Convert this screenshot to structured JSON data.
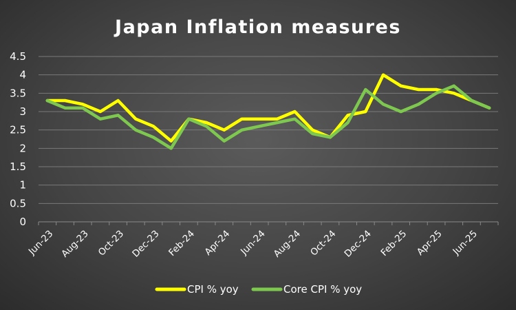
{
  "chart_data": {
    "type": "line",
    "title": "Japan Inflation measures",
    "xlabel": "",
    "ylabel": "",
    "x": [
      "Jun-23",
      "Jul-23",
      "Aug-23",
      "Sep-23",
      "Oct-23",
      "Nov-23",
      "Dec-23",
      "Jan-24",
      "Feb-24",
      "Mar-24",
      "Apr-24",
      "May-24",
      "Jun-24",
      "Jul-24",
      "Aug-24",
      "Sep-24",
      "Oct-24",
      "Nov-24",
      "Dec-24",
      "Jan-25",
      "Feb-25",
      "Mar-25",
      "Apr-25",
      "May-25",
      "Jun-25",
      "Jul-25"
    ],
    "xtick_labels": [
      "Jun-23",
      "Aug-23",
      "Oct-23",
      "Dec-23",
      "Feb-24",
      "Apr-24",
      "Jun-24",
      "Aug-24",
      "Oct-24",
      "Dec-24",
      "Feb-25",
      "Apr-25",
      "Jun-25"
    ],
    "yticks": [
      "0",
      "0.5",
      "1",
      "1.5",
      "2",
      "2.5",
      "3",
      "3.5",
      "4",
      "4.5"
    ],
    "ylim": [
      0,
      4.5
    ],
    "grid": true,
    "legend_position": "bottom",
    "series": [
      {
        "name": "CPI % yoy",
        "color": "#ffff00",
        "values": [
          3.3,
          3.3,
          3.2,
          3.0,
          3.3,
          2.8,
          2.6,
          2.2,
          2.8,
          2.7,
          2.5,
          2.8,
          2.8,
          2.8,
          3.0,
          2.5,
          2.3,
          2.9,
          3.0,
          4.0,
          3.7,
          3.6,
          3.6,
          3.5,
          3.3,
          3.1
        ]
      },
      {
        "name": "Core CPI % yoy",
        "color": "#7ec850",
        "values": [
          3.3,
          3.1,
          3.1,
          2.8,
          2.9,
          2.5,
          2.3,
          2.0,
          2.8,
          2.6,
          2.2,
          2.5,
          2.6,
          2.7,
          2.8,
          2.4,
          2.3,
          2.7,
          3.6,
          3.2,
          3.0,
          3.2,
          3.5,
          3.7,
          3.3,
          3.1
        ]
      }
    ]
  }
}
